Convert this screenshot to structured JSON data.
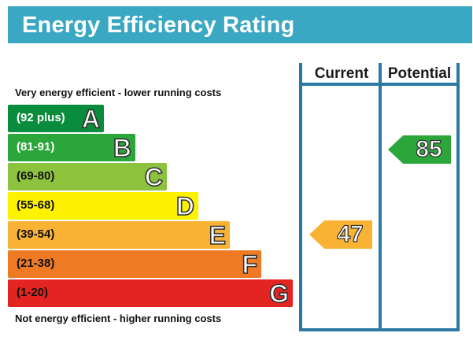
{
  "header": {
    "title": "Energy Efficiency Rating",
    "background": "#3aa8c2"
  },
  "columns": {
    "current": "Current",
    "potential": "Potential"
  },
  "captions": {
    "top": "Very energy efficient - lower running costs",
    "bottom": "Not energy efficient - higher running costs"
  },
  "chart_data": {
    "type": "bar",
    "categories": [
      "A",
      "B",
      "C",
      "D",
      "E",
      "F",
      "G"
    ],
    "ranges": [
      "(92 plus)",
      "(81-91)",
      "(69-80)",
      "(55-68)",
      "(39-54)",
      "(21-38)",
      "(1-20)"
    ],
    "colors": [
      "#098c3c",
      "#2ba63a",
      "#8dc23f",
      "#fef200",
      "#f9b233",
      "#ef7a24",
      "#e42420"
    ],
    "range_text_colors": [
      "#ffffff",
      "#ffffff",
      "#111111",
      "#111111",
      "#111111",
      "#111111",
      "#111111"
    ],
    "current": {
      "value": 47,
      "band": "E",
      "color": "#f9b233"
    },
    "potential": {
      "value": 85,
      "band": "B",
      "color": "#2ba63a"
    }
  }
}
